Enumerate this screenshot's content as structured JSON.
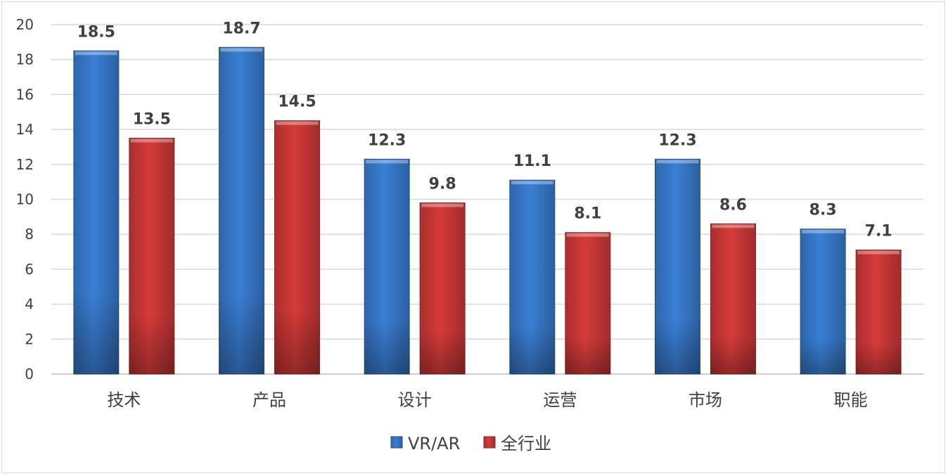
{
  "chart_data": {
    "type": "bar",
    "categories": [
      "技术",
      "产品",
      "设计",
      "运营",
      "市场",
      "职能"
    ],
    "series": [
      {
        "name": "VR/AR",
        "values": [
          18.5,
          18.7,
          12.3,
          11.1,
          12.3,
          8.3
        ],
        "color": "#3a7fd5"
      },
      {
        "name": "全行业",
        "values": [
          13.5,
          14.5,
          9.8,
          8.1,
          8.6,
          7.1
        ],
        "color": "#d63a3a"
      }
    ],
    "ylim": [
      0,
      20
    ],
    "yticks": [
      0,
      2,
      4,
      6,
      8,
      10,
      12,
      14,
      16,
      18,
      20
    ],
    "grid": true,
    "legend": "bottom"
  }
}
